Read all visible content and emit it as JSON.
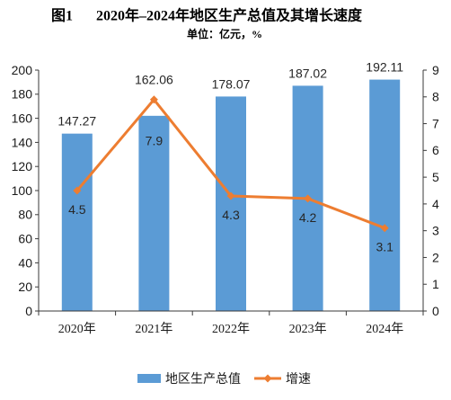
{
  "chart_data": {
    "type": "bar",
    "figure_label": "图1",
    "title": "2020年–2024年地区生产总值及其增长速度",
    "subtitle": "单位：亿元，%",
    "categories": [
      "2020年",
      "2021年",
      "2022年",
      "2023年",
      "2024年"
    ],
    "series": [
      {
        "name": "地区生产总值",
        "type": "bar",
        "axis": "left",
        "color": "#5B9BD5",
        "values": [
          147.27,
          162.06,
          178.07,
          187.02,
          192.11
        ]
      },
      {
        "name": "增速",
        "type": "line",
        "axis": "right",
        "marker": "diamond",
        "color": "#ED7D31",
        "values": [
          4.5,
          7.9,
          4.3,
          4.2,
          3.1
        ]
      }
    ],
    "ylim": [
      0,
      200
    ],
    "yticks": [
      0,
      20,
      40,
      60,
      80,
      100,
      120,
      140,
      160,
      180,
      200
    ],
    "y2lim": [
      0,
      9
    ],
    "y2ticks": [
      0,
      1,
      2,
      3,
      4,
      5,
      6,
      7,
      8,
      9
    ],
    "grid": false,
    "legend": "bottom",
    "data_labels": true
  }
}
